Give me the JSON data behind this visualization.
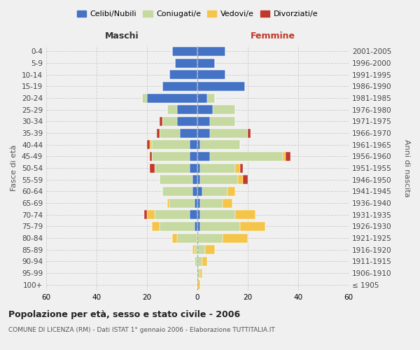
{
  "age_groups": [
    "100+",
    "95-99",
    "90-94",
    "85-89",
    "80-84",
    "75-79",
    "70-74",
    "65-69",
    "60-64",
    "55-59",
    "50-54",
    "45-49",
    "40-44",
    "35-39",
    "30-34",
    "25-29",
    "20-24",
    "15-19",
    "10-14",
    "5-9",
    "0-4"
  ],
  "birth_years": [
    "≤ 1905",
    "1906-1910",
    "1911-1915",
    "1916-1920",
    "1921-1925",
    "1926-1930",
    "1931-1935",
    "1936-1940",
    "1941-1945",
    "1946-1950",
    "1951-1955",
    "1956-1960",
    "1961-1965",
    "1966-1970",
    "1971-1975",
    "1976-1980",
    "1981-1985",
    "1986-1990",
    "1991-1995",
    "1996-2000",
    "2001-2005"
  ],
  "maschi": {
    "celibi": [
      0,
      0,
      0,
      0,
      0,
      1,
      3,
      1,
      2,
      2,
      3,
      3,
      3,
      7,
      8,
      8,
      20,
      14,
      11,
      9,
      10
    ],
    "coniugati": [
      0,
      0,
      1,
      1,
      8,
      14,
      14,
      10,
      12,
      13,
      14,
      15,
      15,
      8,
      6,
      4,
      2,
      0,
      0,
      0,
      0
    ],
    "vedovi": [
      0,
      0,
      0,
      1,
      2,
      3,
      3,
      1,
      0,
      0,
      0,
      0,
      1,
      0,
      0,
      0,
      0,
      0,
      0,
      0,
      0
    ],
    "divorziati": [
      0,
      0,
      0,
      0,
      0,
      0,
      1,
      0,
      0,
      0,
      2,
      1,
      1,
      1,
      1,
      0,
      0,
      0,
      0,
      0,
      0
    ]
  },
  "femmine": {
    "nubili": [
      0,
      0,
      0,
      0,
      0,
      1,
      1,
      1,
      2,
      1,
      1,
      5,
      1,
      5,
      5,
      6,
      4,
      19,
      11,
      7,
      11
    ],
    "coniugate": [
      0,
      1,
      2,
      3,
      10,
      16,
      14,
      9,
      10,
      15,
      14,
      29,
      16,
      15,
      10,
      9,
      3,
      0,
      0,
      0,
      0
    ],
    "vedove": [
      1,
      1,
      2,
      4,
      10,
      10,
      8,
      4,
      3,
      2,
      2,
      1,
      0,
      0,
      0,
      0,
      0,
      0,
      0,
      0,
      0
    ],
    "divorziate": [
      0,
      0,
      0,
      0,
      0,
      0,
      0,
      0,
      0,
      2,
      1,
      2,
      0,
      1,
      0,
      0,
      0,
      0,
      0,
      0,
      0
    ]
  },
  "colors": {
    "celibi": "#4472c4",
    "coniugati": "#c5d9a0",
    "vedovi": "#f5c54a",
    "divorziati": "#c0392b"
  },
  "xlim": 60,
  "title": "Popolazione per età, sesso e stato civile - 2006",
  "subtitle": "COMUNE DI LICENZA (RM) - Dati ISTAT 1° gennaio 2006 - Elaborazione TUTTITALIA.IT",
  "ylabel_left": "Fasce di età",
  "ylabel_right": "Anni di nascita",
  "xlabel_left": "Maschi",
  "xlabel_right": "Femmine",
  "background_color": "#f0f0f0",
  "grid_color": "#cccccc"
}
